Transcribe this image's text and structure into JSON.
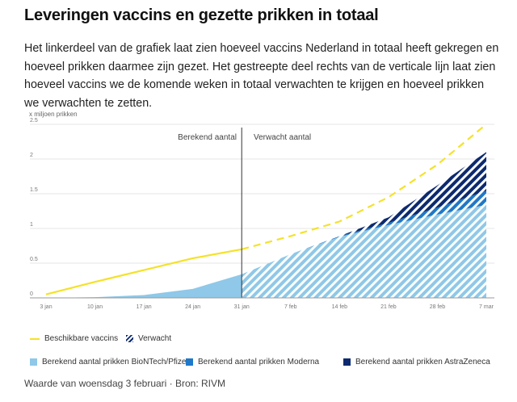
{
  "title": "Leveringen vaccins en gezette prikken in totaal",
  "description": "Het linkerdeel van de grafiek laat zien hoeveel vaccins Nederland in totaal heeft gekregen en hoeveel prikken daarmee zijn gezet. Het gestreepte deel rechts van de verticale lijn laat zien hoeveel vaccins we de komende weken in totaal verwachten te krijgen en hoeveel prikken we verwachten te zetten.",
  "footer": "Waarde van woensdag 3 februari · Bron: RIVM",
  "colors": {
    "vaccins": "#f5e12a",
    "biontech": "#8fc8e8",
    "moderna": "#1f78c8",
    "astrazeneca": "#0d2a6e",
    "axis": "#999999",
    "grid": "#e6e6e6"
  },
  "legend": {
    "beschikbare": "Beschikbare vaccins",
    "verwacht": "Verwacht",
    "biontech": "Berekend aantal prikken BioNTech/Pfizer",
    "moderna": "Berekend aantal prikken Moderna",
    "astrazeneca": "Berekend aantal prikken AstraZeneca"
  },
  "chart_data": {
    "type": "area",
    "ylabel": "x miljoen prikken",
    "ylim": [
      0,
      2.5
    ],
    "yticks": [
      "0",
      "0.5",
      "1",
      "1.5",
      "2",
      "2.5"
    ],
    "categories": [
      "3 jan",
      "10 jan",
      "17 jan",
      "24 jan",
      "31 jan",
      "7 feb",
      "14 feb",
      "21 feb",
      "28 feb",
      "7 mar"
    ],
    "divider": {
      "at": "31 jan",
      "left_label": "Berekend aantal",
      "right_label": "Verwacht aantal"
    },
    "series": [
      {
        "name": "Beschikbare vaccins",
        "type": "line",
        "values": [
          0.05,
          0.23,
          0.4,
          0.57,
          0.7,
          0.89,
          1.1,
          1.45,
          1.92,
          2.5
        ]
      },
      {
        "name": "Berekend aantal prikken BioNTech/Pfizer",
        "type": "area",
        "values": [
          0.0,
          0.01,
          0.04,
          0.13,
          0.34,
          0.63,
          0.88,
          1.05,
          1.2,
          1.34
        ]
      },
      {
        "name": "Berekend aantal prikken Moderna",
        "type": "area",
        "values": [
          0.0,
          0.0,
          0.0,
          0.0,
          0.0,
          0.0,
          0.01,
          0.03,
          0.1,
          0.2
        ]
      },
      {
        "name": "Berekend aantal prikken AstraZeneca",
        "type": "area",
        "values": [
          0.0,
          0.0,
          0.0,
          0.0,
          0.0,
          0.0,
          0.0,
          0.08,
          0.32,
          0.56
        ]
      }
    ]
  }
}
